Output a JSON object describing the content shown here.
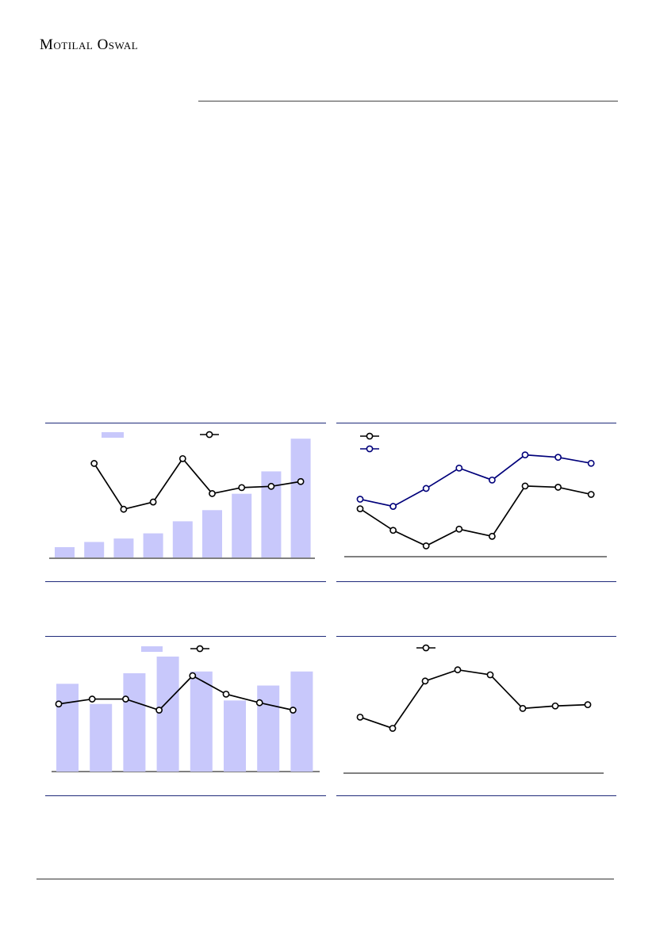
{
  "header": {
    "logo_text": "Motilal Oswal"
  },
  "colors": {
    "bar": "#c8c8fb",
    "line_black": "#000000",
    "line_navy": "#00007a",
    "rule": "#1f2a7a"
  },
  "chart_data": [
    {
      "id": "chart1",
      "type": "bar+line",
      "categories": [
        "",
        "",
        "",
        "",
        "",
        "",
        "",
        "",
        ""
      ],
      "series": [
        {
          "kind": "bar",
          "axis": "left",
          "values": [
            12,
            18,
            22,
            28,
            42,
            55,
            74,
            100,
            138
          ]
        },
        {
          "kind": "line",
          "axis": "right",
          "values": [
            null,
            78,
            40,
            46,
            82,
            53,
            58,
            59,
            63
          ]
        }
      ],
      "ylim_left": [
        0,
        140
      ],
      "ylim_right": [
        0,
        100
      ]
    },
    {
      "id": "chart2",
      "type": "line",
      "categories": [
        "",
        "",
        "",
        "",
        "",
        "",
        "",
        ""
      ],
      "series": [
        {
          "color": "black",
          "values": [
            40,
            22,
            9,
            23,
            17,
            59,
            58,
            52
          ]
        },
        {
          "color": "navy",
          "values": [
            48,
            42,
            57,
            74,
            64,
            85,
            83,
            78
          ]
        }
      ],
      "ylim": [
        0,
        100
      ]
    },
    {
      "id": "chart3",
      "type": "bar+line",
      "categories": [
        "",
        "",
        "",
        "",
        "",
        "",
        "",
        ""
      ],
      "series": [
        {
          "kind": "bar",
          "axis": "left",
          "values": [
            100,
            77,
            112,
            131,
            114,
            81,
            98,
            114
          ]
        },
        {
          "kind": "line",
          "axis": "right",
          "values": [
            55,
            59,
            59,
            50,
            78,
            63,
            56,
            50
          ]
        }
      ],
      "ylim_left": [
        0,
        140
      ],
      "ylim_right": [
        0,
        100
      ]
    },
    {
      "id": "chart4",
      "type": "line",
      "categories": [
        "",
        "",
        "",
        "",
        "",
        "",
        "",
        ""
      ],
      "series": [
        {
          "color": "black",
          "values": [
            45,
            36,
            74,
            83,
            79,
            52,
            54,
            55
          ]
        }
      ],
      "ylim": [
        0,
        100
      ]
    }
  ]
}
